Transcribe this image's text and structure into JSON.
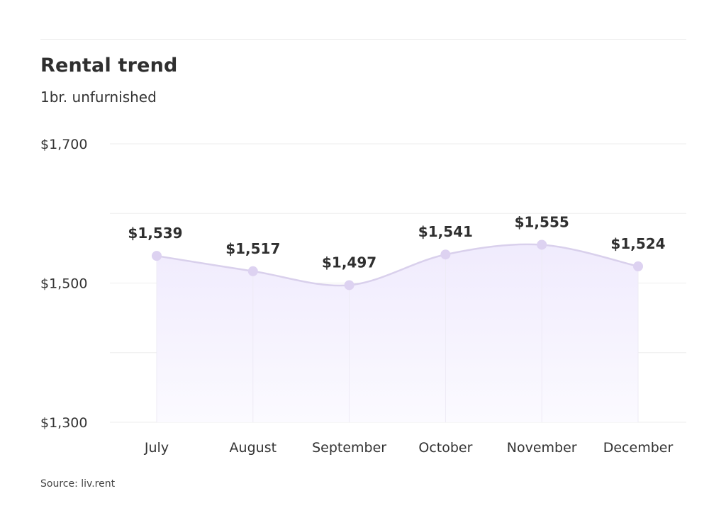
{
  "header": {
    "title": "Rental trend",
    "subtitle": "1br. unfurnished"
  },
  "footer": {
    "source": "Source: liv.rent"
  },
  "colors": {
    "line": "#d9d0ec",
    "point": "#ddd2f1",
    "area_top": "#f0ebfd",
    "area_bottom": "#fbfaff",
    "grid": "#eeeeee",
    "text": "#333333"
  },
  "chart_data": {
    "type": "area",
    "categories": [
      "July",
      "August",
      "September",
      "October",
      "November",
      "December"
    ],
    "values": [
      1539,
      1517,
      1497,
      1541,
      1555,
      1524
    ],
    "value_labels": [
      "$1,539",
      "$1,517",
      "$1,497",
      "$1,541",
      "$1,555",
      "$1,524"
    ],
    "y_tick_values": [
      1300,
      1500,
      1700
    ],
    "y_tick_labels": [
      "$1,300",
      "$1,500",
      "$1,700"
    ],
    "ylim": [
      1300,
      1700
    ],
    "grid": true,
    "smooth": true,
    "title": "Rental trend",
    "subtitle": "1br. unfurnished"
  }
}
